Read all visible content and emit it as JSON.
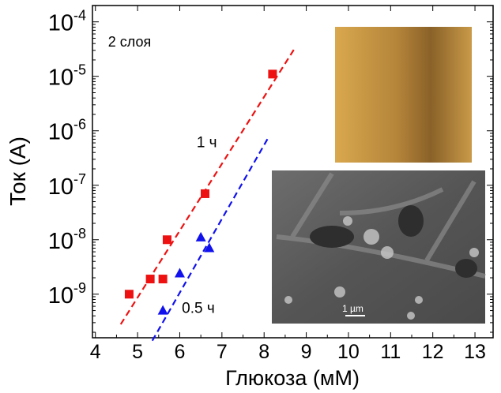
{
  "chart_data": {
    "type": "scatter",
    "title": "",
    "xlabel": "Глюкоза (мМ)",
    "ylabel": "Ток (А)",
    "xlim": [
      3.93,
      13.43
    ],
    "ylim_log10": [
      -9.8,
      -3.7
    ],
    "yscale": "log",
    "x_ticks": [
      4,
      5,
      6,
      7,
      8,
      9,
      10,
      11,
      12,
      13
    ],
    "y_ticks": [
      {
        "exp": -4,
        "base": "10",
        "sup": "-4"
      },
      {
        "exp": -5,
        "base": "10",
        "sup": "-5"
      },
      {
        "exp": -6,
        "base": "10",
        "sup": "-6"
      },
      {
        "exp": -7,
        "base": "10",
        "sup": "-7"
      },
      {
        "exp": -8,
        "base": "10",
        "sup": "-8"
      },
      {
        "exp": -9,
        "base": "10",
        "sup": "-9"
      }
    ],
    "grid": false,
    "series": [
      {
        "name": "1 ч",
        "color": "#ee1111",
        "marker": "square",
        "points": [
          [
            4.8,
            1e-09
          ],
          [
            5.3,
            1.9e-09
          ],
          [
            5.6,
            1.9e-09
          ],
          [
            5.7,
            1e-08
          ],
          [
            6.6,
            7e-08
          ],
          [
            8.2,
            1.1e-05
          ]
        ],
        "fit": [
          [
            4.6,
            2.8e-10
          ],
          [
            8.75,
            3.5e-05
          ]
        ]
      },
      {
        "name": "0.5 ч",
        "color": "#1111ee",
        "marker": "triangle",
        "points": [
          [
            5.6,
            5e-10
          ],
          [
            6.0,
            2.4e-09
          ],
          [
            6.5,
            1.1e-08
          ],
          [
            6.7,
            7e-09
          ]
        ],
        "fit": [
          [
            5.35,
            1.4e-10
          ],
          [
            8.1,
            7.5e-07
          ]
        ]
      }
    ],
    "annotations": [
      {
        "text": "2 слоя",
        "x": 4.3,
        "y": 3.5e-05
      },
      {
        "text": "1 ч",
        "x": 6.4,
        "y": 5e-07
      },
      {
        "text": "0.5 ч",
        "x": 6.05,
        "y": 4.5e-10
      }
    ]
  },
  "insets": {
    "optical_image": "micrograph-optical",
    "sem_image": "micrograph-sem",
    "scale_bar_label": "1 µm"
  }
}
